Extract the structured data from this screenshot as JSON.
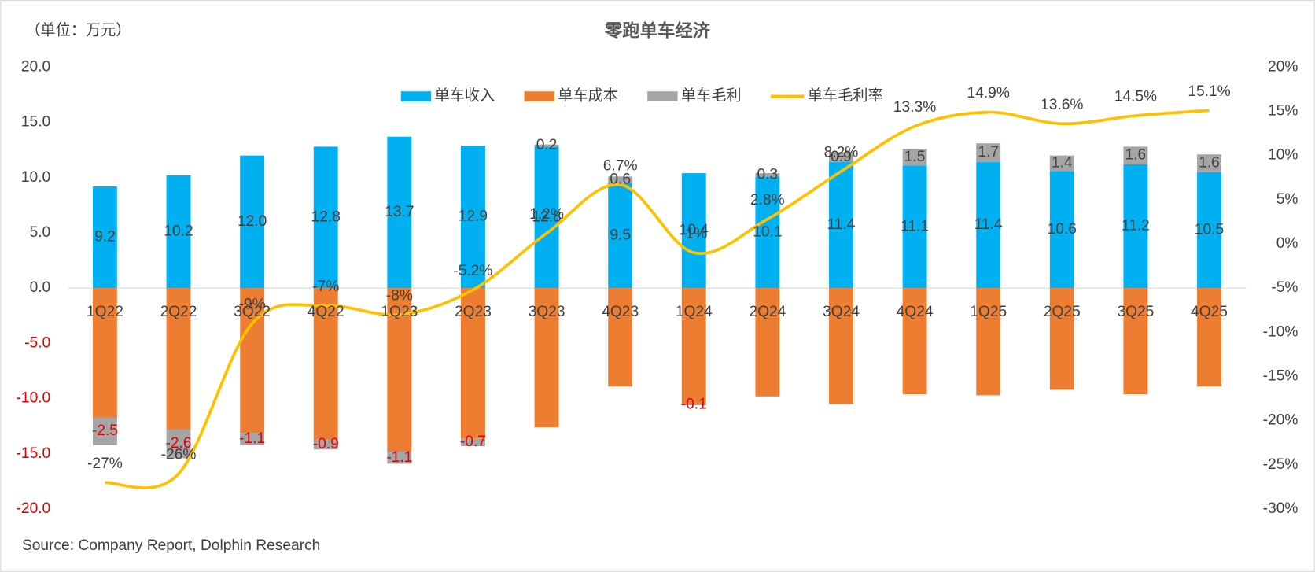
{
  "chart_data": {
    "type": "bar",
    "title": "零跑单车经济",
    "unit_label": "（单位：万元）",
    "source": "Source: Company Report, Dolphin Research",
    "categories": [
      "1Q22",
      "2Q22",
      "3Q22",
      "4Q22",
      "1Q23",
      "2Q23",
      "3Q23",
      "4Q23",
      "1Q24",
      "2Q24",
      "3Q24",
      "4Q24",
      "1Q25",
      "2Q25",
      "3Q25",
      "4Q25"
    ],
    "series": [
      {
        "name": "单车收入",
        "color": "#00b0f0",
        "values": [
          9.2,
          10.2,
          12.0,
          12.8,
          13.7,
          12.9,
          12.8,
          9.5,
          10.4,
          10.1,
          11.4,
          11.1,
          11.4,
          10.6,
          11.2,
          10.5
        ],
        "value_labels": [
          "9.2",
          "10.2",
          "12.0",
          "12.8",
          "13.7",
          "12.9",
          "12.8",
          "9.5",
          "10.4",
          "10.1",
          "11.4",
          "11.1",
          "11.4",
          "10.6",
          "11.2",
          "10.5"
        ]
      },
      {
        "name": "单车成本",
        "color": "#ed7d31",
        "values": [
          -11.7,
          -12.8,
          -13.1,
          -13.7,
          -14.8,
          -13.6,
          -12.6,
          -8.9,
          -10.5,
          -9.8,
          -10.5,
          -9.6,
          -9.7,
          -9.2,
          -9.6,
          -8.9
        ]
      },
      {
        "name": "单车毛利",
        "color": "#a5a5a5",
        "values": [
          -2.5,
          -2.6,
          -1.1,
          -0.9,
          -1.1,
          -0.7,
          0.2,
          0.6,
          -0.1,
          0.3,
          0.9,
          1.5,
          1.7,
          1.4,
          1.6,
          1.6
        ]
      },
      {
        "name": "单车毛利率",
        "type": "line",
        "axis": "y2",
        "color": "#ffc000",
        "values": [
          -27,
          -26,
          -9,
          -7,
          -8,
          -5.2,
          1.2,
          6.7,
          -1,
          2.8,
          8.2,
          13.3,
          14.9,
          13.6,
          14.5,
          15.1
        ],
        "value_labels": [
          "-27%",
          "-26%",
          "-9%",
          "-7%",
          "-8%",
          "-5.2%",
          "1.2%",
          "6.7%",
          "-1%",
          "2.8%",
          "8.2%",
          "13.3%",
          "14.9%",
          "13.6%",
          "14.5%",
          "15.1%"
        ]
      }
    ],
    "ylim": [
      -20,
      20
    ],
    "yticks": [
      {
        "value": 20,
        "label": "20.0"
      },
      {
        "value": 15,
        "label": "15.0"
      },
      {
        "value": 10,
        "label": "10.0"
      },
      {
        "value": 5,
        "label": "5.0"
      },
      {
        "value": 0,
        "label": "0.0"
      },
      {
        "value": -5,
        "label": "-5.0"
      },
      {
        "value": -10,
        "label": "-10.0"
      },
      {
        "value": -15,
        "label": "-15.0"
      },
      {
        "value": -20,
        "label": "-20.0"
      }
    ],
    "y2lim": [
      -30,
      20
    ],
    "y2ticks": [
      {
        "value": 20,
        "label": "20%"
      },
      {
        "value": 15,
        "label": "15%"
      },
      {
        "value": 10,
        "label": "10%"
      },
      {
        "value": 5,
        "label": "5%"
      },
      {
        "value": 0,
        "label": "0%"
      },
      {
        "value": -5,
        "label": "-5%"
      },
      {
        "value": -10,
        "label": "-10%"
      },
      {
        "value": -15,
        "label": "-15%"
      },
      {
        "value": -20,
        "label": "-20%"
      },
      {
        "value": -25,
        "label": "-25%"
      },
      {
        "value": -30,
        "label": "-30%"
      }
    ]
  }
}
